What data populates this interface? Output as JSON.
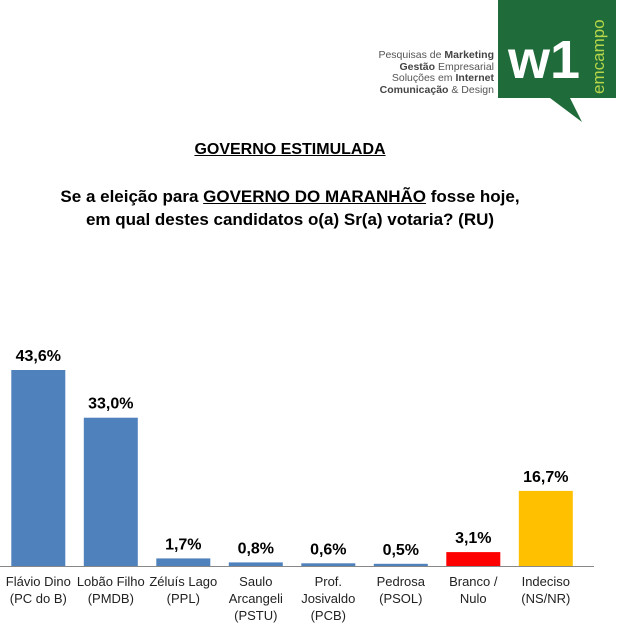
{
  "branding": {
    "lines": [
      {
        "normal": "Pesquisas de ",
        "bold": "Marketing",
        "tail": ""
      },
      {
        "normal": "",
        "bold": "Gestão",
        "tail": " Empresarial"
      },
      {
        "normal": "Soluções em ",
        "bold": "Internet",
        "tail": ""
      },
      {
        "normal": "",
        "bold": "Comunicação",
        "tail": " & Design"
      }
    ],
    "logo_text": "w1",
    "logo_side_text": "emcampo",
    "logo_color": "#1f6b3a"
  },
  "header": {
    "section_title": "GOVERNO ESTIMULADA",
    "question_line1_pre": "Se a eleição para ",
    "question_line1_highlight": "GOVERNO DO MARANHÃO",
    "question_line1_post": " fosse hoje,",
    "question_line2": "em qual destes candidatos o(a) Sr(a) votaria? (RU)"
  },
  "chart_data": {
    "type": "bar",
    "categories": [
      [
        "Flávio Dino",
        "(PC do B)"
      ],
      [
        "Lobão Filho",
        "(PMDB)"
      ],
      [
        "Zéluís Lago",
        "(PPL)"
      ],
      [
        "Saulo",
        "Arcangeli",
        "(PSTU)"
      ],
      [
        "Prof.",
        "Josivaldo",
        "(PCB)"
      ],
      [
        "Pedrosa",
        "(PSOL)"
      ],
      [
        "Branco /",
        "Nulo"
      ],
      [
        "Indeciso",
        "(NS/NR)"
      ]
    ],
    "values": [
      43.6,
      33.0,
      1.7,
      0.8,
      0.6,
      0.5,
      3.1,
      16.7
    ],
    "labels": [
      "43,6%",
      "33,0%",
      "1,7%",
      "0,8%",
      "0,6%",
      "0,5%",
      "3,1%",
      "16,7%"
    ],
    "colors": [
      "#4f81bd",
      "#4f81bd",
      "#4f81bd",
      "#4f81bd",
      "#4f81bd",
      "#4f81bd",
      "#ff0000",
      "#ffc000"
    ],
    "ylim": [
      0,
      43.6
    ],
    "grid": false,
    "legend": "none"
  }
}
